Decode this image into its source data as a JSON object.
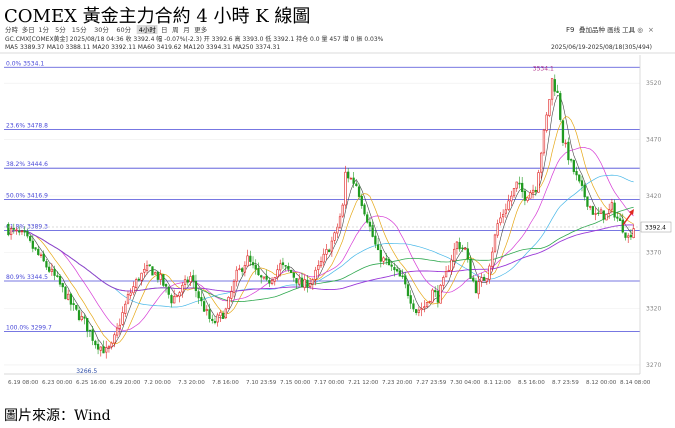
{
  "page": {
    "title": "COMEX 黃金主力合約 4 小時 K 線圖",
    "source": "圖片來源：Wind"
  },
  "toolbar": {
    "periods": [
      "分時",
      "多日",
      "1分",
      "5分",
      "15分",
      "30分",
      "60分",
      "4小时",
      "日",
      "周",
      "月",
      "更多"
    ],
    "active_period": "4小时",
    "right_label": "F9",
    "right_tools": "叠加品种 画线 工具 ◎",
    "close_glyph": "×"
  },
  "info": {
    "line1": "GC.CMX[COMEX黄金]  2025/08/18 04:36  收 3392.4  幅 -0.07%(-2.3)  开 3392.6  高 3393.0  低 3392.1  持仓 0.0  量 457  增 0  振 0.03%",
    "line2_label": "MA5 3389.37  MA10 3388.11  MA20 3392.11  MA60 3419.62  MA120 3394.31  MA250 3374.31",
    "date_range": "2025/06/19-2025/08/18(305/494)"
  },
  "fib_levels": [
    {
      "label": "0.0%  3534.1",
      "price": 3534.1
    },
    {
      "label": "23.6%  3478.8",
      "price": 3478.8
    },
    {
      "label": "38.2%  3444.6",
      "price": 3444.6
    },
    {
      "label": "50.0%  3416.9",
      "price": 3416.9
    },
    {
      "label": "61.8%  3389.3",
      "price": 3389.3
    },
    {
      "label": "80.9%  3344.5",
      "price": 3344.5
    },
    {
      "label": "100.0%  3299.7",
      "price": 3299.7
    }
  ],
  "annotations": {
    "high": "3534.1",
    "low": "3266.5",
    "last_price": "3392.4"
  },
  "colors": {
    "up": "#e02020",
    "down": "#1f9a1f",
    "fib": "#4a4ad8",
    "ma5": "#444444",
    "ma10": "#e6a817",
    "ma20": "#d63cd6",
    "ma60": "#2fa84f",
    "ma120": "#46b7e8",
    "ma250": "#9b3ad8"
  },
  "chart_data": {
    "type": "candlestick",
    "title": "COMEX 黃金主力合約 4 小時 K 線圖",
    "ylim": [
      3262,
      3545
    ],
    "y_ticks": [
      3270,
      3320,
      3370,
      3420,
      3470,
      3520
    ],
    "x_ticks": [
      "6.19 08:00",
      "6.23 00:00",
      "6.25 16:00",
      "6.29 20:00",
      "7.2 00:00",
      "7.3 20:00",
      "7.8 16:00",
      "7.10 23:59",
      "7.15 00:00",
      "7.17 00:00",
      "7.21 12:00",
      "7.23 20:00",
      "7.27 23:59",
      "7.30 04:00",
      "8.1 12:00",
      "8.5 16:00",
      "8.7 23:59",
      "8.12 00:00",
      "8.14 08:00"
    ],
    "close_keypoints": [
      [
        0,
        3390
      ],
      [
        6,
        3384
      ],
      [
        12,
        3364
      ],
      [
        18,
        3345
      ],
      [
        24,
        3320
      ],
      [
        28,
        3308
      ],
      [
        32,
        3290
      ],
      [
        36,
        3282
      ],
      [
        38,
        3286
      ],
      [
        44,
        3330
      ],
      [
        48,
        3348
      ],
      [
        52,
        3356
      ],
      [
        56,
        3346
      ],
      [
        60,
        3328
      ],
      [
        63,
        3335
      ],
      [
        67,
        3348
      ],
      [
        71,
        3325
      ],
      [
        75,
        3306
      ],
      [
        80,
        3318
      ],
      [
        84,
        3350
      ],
      [
        88,
        3364
      ],
      [
        92,
        3348
      ],
      [
        95,
        3342
      ],
      [
        100,
        3358
      ],
      [
        104,
        3352
      ],
      [
        108,
        3340
      ],
      [
        112,
        3346
      ],
      [
        116,
        3365
      ],
      [
        120,
        3384
      ],
      [
        123,
        3410
      ],
      [
        124,
        3440
      ],
      [
        128,
        3430
      ],
      [
        132,
        3400
      ],
      [
        136,
        3368
      ],
      [
        140,
        3358
      ],
      [
        145,
        3345
      ],
      [
        150,
        3318
      ],
      [
        153,
        3322
      ],
      [
        156,
        3335
      ],
      [
        158,
        3330
      ],
      [
        161,
        3350
      ],
      [
        163,
        3365
      ],
      [
        165,
        3378
      ],
      [
        168,
        3372
      ],
      [
        170,
        3350
      ],
      [
        172,
        3338
      ],
      [
        176,
        3350
      ],
      [
        180,
        3395
      ],
      [
        184,
        3415
      ],
      [
        187,
        3430
      ],
      [
        190,
        3420
      ],
      [
        194,
        3428
      ],
      [
        196,
        3460
      ],
      [
        198,
        3490
      ],
      [
        200,
        3523
      ],
      [
        202,
        3510
      ],
      [
        204,
        3470
      ],
      [
        207,
        3448
      ],
      [
        210,
        3430
      ],
      [
        213,
        3415
      ],
      [
        216,
        3402
      ],
      [
        218,
        3404
      ],
      [
        220,
        3402
      ],
      [
        222,
        3410
      ],
      [
        224,
        3400
      ],
      [
        226,
        3392
      ],
      [
        228,
        3383
      ],
      [
        230,
        3392.4
      ]
    ],
    "fibonacci": {
      "high": 3534.1,
      "low": 3299.7
    }
  }
}
